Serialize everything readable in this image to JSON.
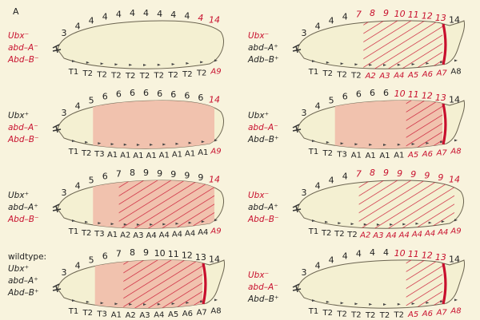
{
  "figure_label": "A",
  "colors": {
    "background": "#f8f3dd",
    "embryo": "#f4f0d2",
    "outline": "#6b6450",
    "pink": "#f1c2ae",
    "red": "#c8102e",
    "black": "#222222"
  },
  "panels": [
    {
      "id": "L1",
      "genotype": [
        {
          "text": "Ubx⁻",
          "c": "red"
        },
        {
          "text": "abd–A⁻",
          "c": "red"
        },
        {
          "text": "Abd–B⁻",
          "c": "red"
        }
      ],
      "top": [
        [
          "3",
          "k"
        ],
        [
          "4",
          "k"
        ],
        [
          "4",
          "k"
        ],
        [
          "4",
          "k"
        ],
        [
          "4",
          "k"
        ],
        [
          "4",
          "k"
        ],
        [
          "4",
          "k"
        ],
        [
          "4",
          "k"
        ],
        [
          "4",
          "k"
        ],
        [
          "4",
          "k"
        ],
        [
          "4",
          "r"
        ],
        [
          "14",
          "r"
        ]
      ],
      "bottom": [
        [
          "T1",
          "k"
        ],
        [
          "T2",
          "k"
        ],
        [
          "T2",
          "k"
        ],
        [
          "T2",
          "k"
        ],
        [
          "T2",
          "k"
        ],
        [
          "T2",
          "k"
        ],
        [
          "T2",
          "k"
        ],
        [
          "T2",
          "k"
        ],
        [
          "T2",
          "k"
        ],
        [
          "T2",
          "k"
        ],
        [
          "A9",
          "r"
        ]
      ],
      "pink_from": null,
      "hatch_from": null,
      "band": false
    },
    {
      "id": "L2",
      "genotype": [
        {
          "text": "Ubx⁺",
          "c": "k"
        },
        {
          "text": "abd–A⁻",
          "c": "red"
        },
        {
          "text": "Abd–B⁻",
          "c": "red"
        }
      ],
      "top": [
        [
          "3",
          "k"
        ],
        [
          "4",
          "k"
        ],
        [
          "5",
          "k"
        ],
        [
          "6",
          "k"
        ],
        [
          "6",
          "k"
        ],
        [
          "6",
          "k"
        ],
        [
          "6",
          "k"
        ],
        [
          "6",
          "k"
        ],
        [
          "6",
          "k"
        ],
        [
          "6",
          "k"
        ],
        [
          "6",
          "k"
        ],
        [
          "14",
          "r"
        ]
      ],
      "bottom": [
        [
          "T1",
          "k"
        ],
        [
          "T2",
          "k"
        ],
        [
          "T3",
          "k"
        ],
        [
          "A1",
          "k"
        ],
        [
          "A1",
          "k"
        ],
        [
          "A1",
          "k"
        ],
        [
          "A1",
          "k"
        ],
        [
          "A1",
          "k"
        ],
        [
          "A1",
          "k"
        ],
        [
          "A1",
          "k"
        ],
        [
          "A1",
          "k"
        ],
        [
          "A9",
          "r"
        ]
      ],
      "pink_from": "T3",
      "hatch_from": null,
      "band": false
    },
    {
      "id": "L3",
      "genotype": [
        {
          "text": "Ubx⁺",
          "c": "k"
        },
        {
          "text": "abd–A⁺",
          "c": "k"
        },
        {
          "text": "Abd–B⁻",
          "c": "red"
        }
      ],
      "top": [
        [
          "3",
          "k"
        ],
        [
          "4",
          "k"
        ],
        [
          "5",
          "k"
        ],
        [
          "6",
          "k"
        ],
        [
          "7",
          "k"
        ],
        [
          "8",
          "k"
        ],
        [
          "9",
          "k"
        ],
        [
          "9",
          "k"
        ],
        [
          "9",
          "k"
        ],
        [
          "9",
          "k"
        ],
        [
          "9",
          "k"
        ],
        [
          "14",
          "r"
        ]
      ],
      "bottom": [
        [
          "T1",
          "k"
        ],
        [
          "T2",
          "k"
        ],
        [
          "T3",
          "k"
        ],
        [
          "A1",
          "k"
        ],
        [
          "A2",
          "k"
        ],
        [
          "A3",
          "k"
        ],
        [
          "A4",
          "k"
        ],
        [
          "A4",
          "k"
        ],
        [
          "A4",
          "k"
        ],
        [
          "A4",
          "k"
        ],
        [
          "A4",
          "k"
        ],
        [
          "A9",
          "r"
        ]
      ],
      "pink_from": "T3",
      "hatch_from": "A2",
      "band": false
    },
    {
      "id": "L4",
      "heading": "wildtype:",
      "genotype": [
        {
          "text": "Ubx⁺",
          "c": "k"
        },
        {
          "text": "abd–A⁺",
          "c": "k"
        },
        {
          "text": "Abd–B⁺",
          "c": "k"
        }
      ],
      "top": [
        [
          "3",
          "k"
        ],
        [
          "4",
          "k"
        ],
        [
          "5",
          "k"
        ],
        [
          "6",
          "k"
        ],
        [
          "7",
          "k"
        ],
        [
          "8",
          "k"
        ],
        [
          "9",
          "k"
        ],
        [
          "10",
          "k"
        ],
        [
          "11",
          "k"
        ],
        [
          "12",
          "k"
        ],
        [
          "13",
          "k"
        ],
        [
          "14",
          "k"
        ]
      ],
      "bottom": [
        [
          "T1",
          "k"
        ],
        [
          "T2",
          "k"
        ],
        [
          "T3",
          "k"
        ],
        [
          "A1",
          "k"
        ],
        [
          "A2",
          "k"
        ],
        [
          "A3",
          "k"
        ],
        [
          "A4",
          "k"
        ],
        [
          "A5",
          "k"
        ],
        [
          "A6",
          "k"
        ],
        [
          "A7",
          "k"
        ],
        [
          "A8",
          "k"
        ]
      ],
      "pink_from": "T3",
      "hatch_from": "A2",
      "band": true
    },
    {
      "id": "R1",
      "genotype": [
        {
          "text": "Ubx⁻",
          "c": "red"
        },
        {
          "text": "abd–A⁺",
          "c": "k"
        },
        {
          "text": "Adb–B⁺",
          "c": "k"
        }
      ],
      "top": [
        [
          "3",
          "k"
        ],
        [
          "4",
          "k"
        ],
        [
          "4",
          "k"
        ],
        [
          "4",
          "k"
        ],
        [
          "7",
          "r"
        ],
        [
          "8",
          "r"
        ],
        [
          "9",
          "r"
        ],
        [
          "10",
          "r"
        ],
        [
          "11",
          "r"
        ],
        [
          "12",
          "r"
        ],
        [
          "13",
          "r"
        ],
        [
          "14",
          "k"
        ]
      ],
      "bottom": [
        [
          "T1",
          "k"
        ],
        [
          "T2",
          "k"
        ],
        [
          "T2",
          "k"
        ],
        [
          "T2",
          "k"
        ],
        [
          "A2",
          "r"
        ],
        [
          "A3",
          "r"
        ],
        [
          "A4",
          "r"
        ],
        [
          "A5",
          "r"
        ],
        [
          "A6",
          "r"
        ],
        [
          "A7",
          "r"
        ],
        [
          "A8",
          "k"
        ]
      ],
      "pink_from": null,
      "hatch_from": "A2",
      "band": true
    },
    {
      "id": "R2",
      "genotype": [
        {
          "text": "Ubx⁺",
          "c": "k"
        },
        {
          "text": "abd–A⁻",
          "c": "red"
        },
        {
          "text": "Abd–B⁺",
          "c": "k"
        }
      ],
      "top": [
        [
          "3",
          "k"
        ],
        [
          "4",
          "k"
        ],
        [
          "5",
          "k"
        ],
        [
          "6",
          "k"
        ],
        [
          "6",
          "k"
        ],
        [
          "6",
          "k"
        ],
        [
          "6",
          "k"
        ],
        [
          "10",
          "r"
        ],
        [
          "11",
          "r"
        ],
        [
          "12",
          "r"
        ],
        [
          "13",
          "r"
        ],
        [
          "14",
          "k"
        ]
      ],
      "bottom": [
        [
          "T1",
          "k"
        ],
        [
          "T2",
          "k"
        ],
        [
          "T3",
          "k"
        ],
        [
          "A1",
          "k"
        ],
        [
          "A1",
          "k"
        ],
        [
          "A1",
          "k"
        ],
        [
          "A1",
          "k"
        ],
        [
          "A5",
          "r"
        ],
        [
          "A6",
          "r"
        ],
        [
          "A7",
          "r"
        ],
        [
          "A8",
          "r"
        ]
      ],
      "pink_from": "T3",
      "hatch_from": "A5",
      "band": true
    },
    {
      "id": "R3",
      "genotype": [
        {
          "text": "Ubx⁻",
          "c": "red"
        },
        {
          "text": "abd–A⁺",
          "c": "k"
        },
        {
          "text": "Abd–B⁻",
          "c": "red"
        }
      ],
      "top": [
        [
          "3",
          "k"
        ],
        [
          "4",
          "k"
        ],
        [
          "4",
          "k"
        ],
        [
          "4",
          "k"
        ],
        [
          "7",
          "r"
        ],
        [
          "8",
          "r"
        ],
        [
          "9",
          "r"
        ],
        [
          "9",
          "r"
        ],
        [
          "9",
          "r"
        ],
        [
          "9",
          "r"
        ],
        [
          "9",
          "r"
        ],
        [
          "14",
          "r"
        ]
      ],
      "bottom": [
        [
          "T1",
          "k"
        ],
        [
          "T2",
          "k"
        ],
        [
          "T2",
          "k"
        ],
        [
          "T2",
          "k"
        ],
        [
          "A2",
          "r"
        ],
        [
          "A3",
          "r"
        ],
        [
          "A4",
          "r"
        ],
        [
          "A4",
          "r"
        ],
        [
          "A4",
          "r"
        ],
        [
          "A4",
          "r"
        ],
        [
          "A4",
          "r"
        ],
        [
          "A9",
          "r"
        ]
      ],
      "pink_from": null,
      "hatch_from": "A2",
      "band": false
    },
    {
      "id": "R4",
      "genotype": [
        {
          "text": "Ubx⁻",
          "c": "red"
        },
        {
          "text": "abd–A⁻",
          "c": "red"
        },
        {
          "text": "Abd–B⁺",
          "c": "k"
        }
      ],
      "top": [
        [
          "3",
          "k"
        ],
        [
          "4",
          "k"
        ],
        [
          "4",
          "k"
        ],
        [
          "4",
          "k"
        ],
        [
          "4",
          "k"
        ],
        [
          "4",
          "k"
        ],
        [
          "4",
          "k"
        ],
        [
          "10",
          "r"
        ],
        [
          "11",
          "r"
        ],
        [
          "12",
          "r"
        ],
        [
          "13",
          "r"
        ],
        [
          "14",
          "k"
        ]
      ],
      "bottom": [
        [
          "T1",
          "k"
        ],
        [
          "T2",
          "k"
        ],
        [
          "T2",
          "k"
        ],
        [
          "T2",
          "k"
        ],
        [
          "T2",
          "k"
        ],
        [
          "T2",
          "k"
        ],
        [
          "T2",
          "k"
        ],
        [
          "A5",
          "r"
        ],
        [
          "A6",
          "r"
        ],
        [
          "A7",
          "r"
        ],
        [
          "A8",
          "r"
        ]
      ],
      "pink_from": null,
      "hatch_from": "A5",
      "band": true
    }
  ]
}
